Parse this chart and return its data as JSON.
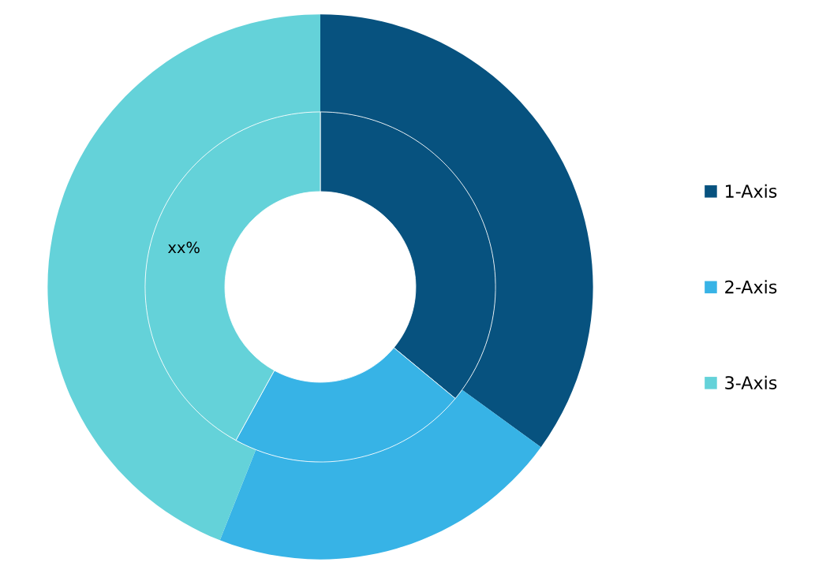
{
  "chart_data": {
    "type": "donut",
    "categories": [
      "1-Axis",
      "2-Axis",
      "3-Axis"
    ],
    "colors": [
      "#07527f",
      "#37b3e6",
      "#64d2d9"
    ],
    "series": [
      {
        "values": [
          35,
          21,
          44
        ]
      },
      {
        "values": [
          36,
          22,
          42
        ]
      }
    ],
    "annotations": [
      "xx%"
    ],
    "legend": "right"
  }
}
